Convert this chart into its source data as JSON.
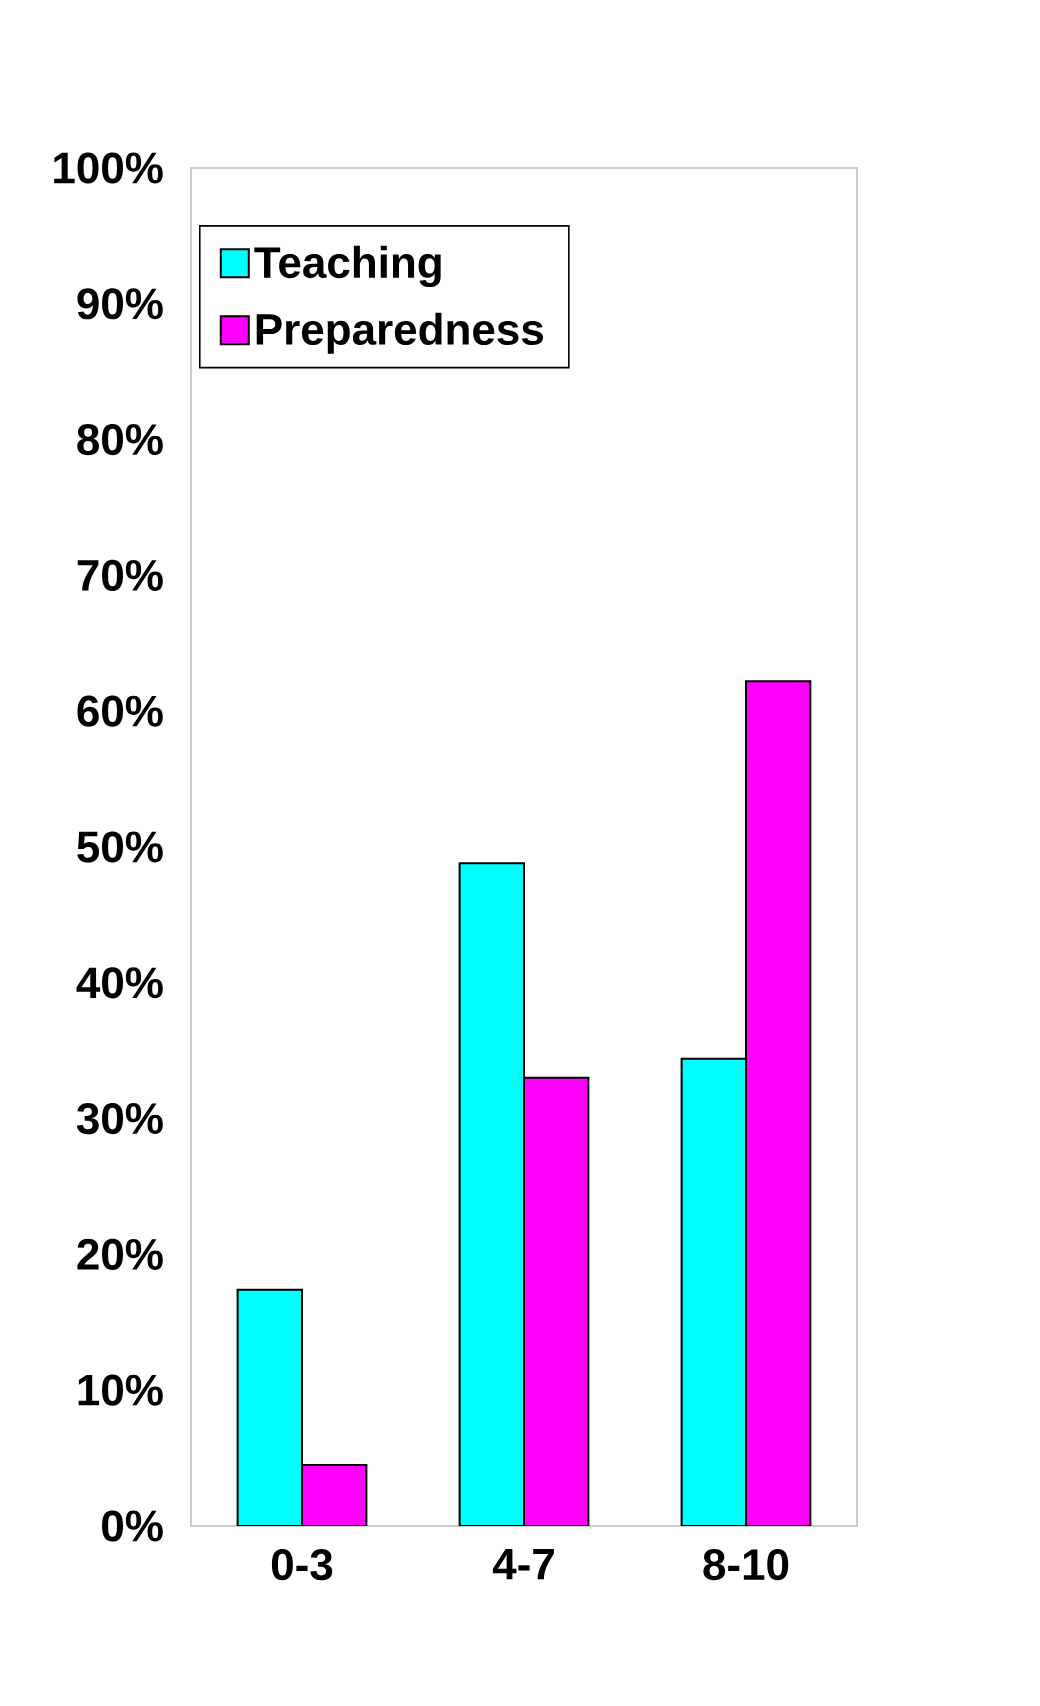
{
  "chart_data": {
    "type": "bar",
    "categories": [
      "0-3",
      "4-7",
      "8-10"
    ],
    "series": [
      {
        "name": "Teaching",
        "color": "#00ffff",
        "values": [
          17.4,
          48.8,
          34.4
        ]
      },
      {
        "name": "Preparedness",
        "color": "#ff00ff",
        "values": [
          4.5,
          33.0,
          62.2
        ]
      }
    ],
    "ylim": [
      0,
      100
    ],
    "yticks": [
      {
        "value": 0,
        "label": "0%"
      },
      {
        "value": 10,
        "label": "10%"
      },
      {
        "value": 20,
        "label": "20%"
      },
      {
        "value": 30,
        "label": "30%"
      },
      {
        "value": 40,
        "label": "40%"
      },
      {
        "value": 50,
        "label": "50%"
      },
      {
        "value": 60,
        "label": "60%"
      },
      {
        "value": 70,
        "label": "70%"
      },
      {
        "value": 80,
        "label": "80%"
      },
      {
        "value": 90,
        "label": "90%"
      },
      {
        "value": 100,
        "label": "100%"
      }
    ],
    "legend": "top left",
    "grid": false
  }
}
